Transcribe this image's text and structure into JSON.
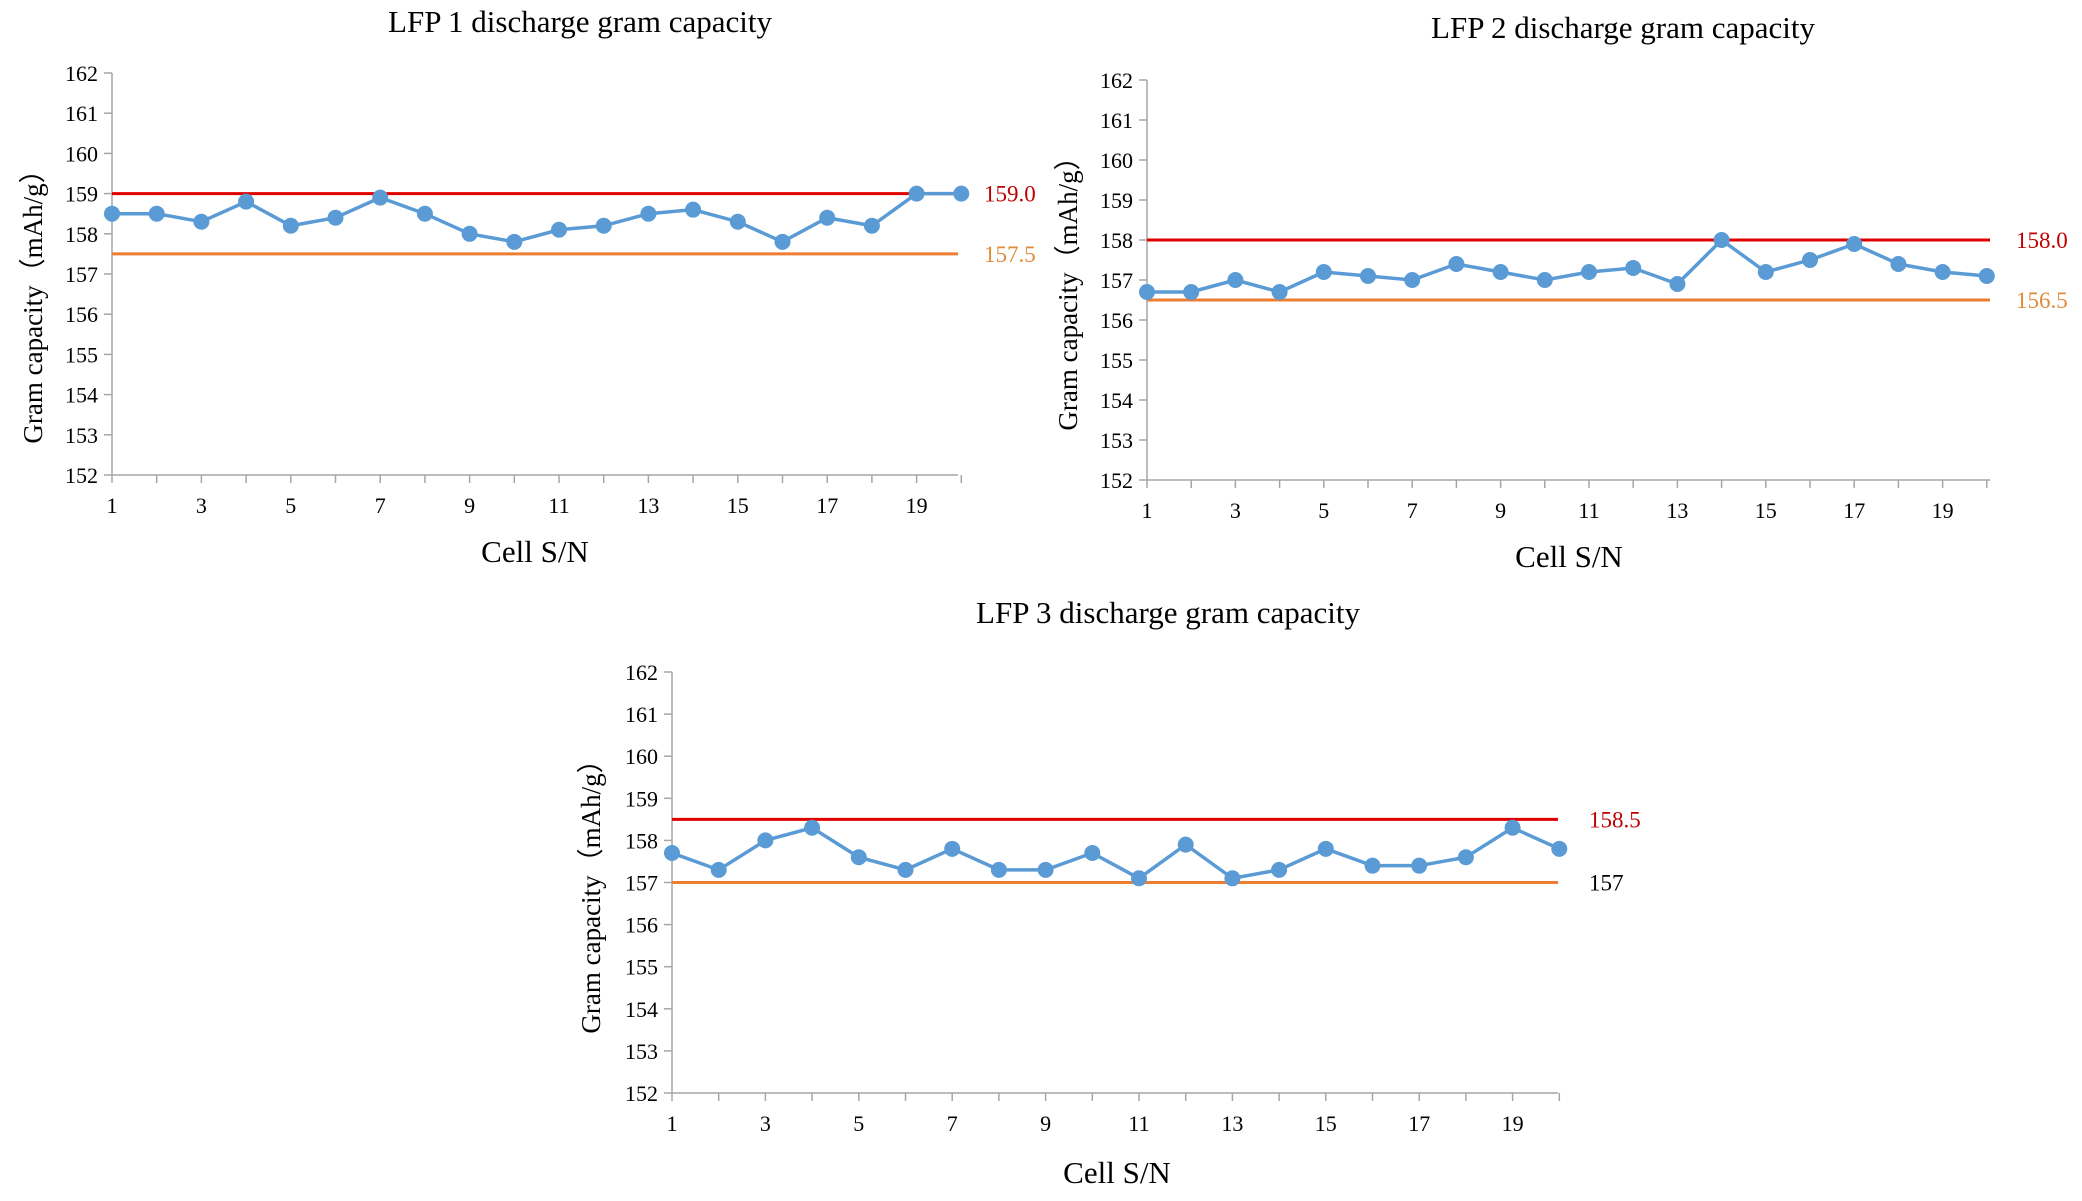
{
  "chart_data": [
    {
      "type": "line",
      "title": "LFP 1 discharge gram capacity",
      "xlabel": "Cell S/N",
      "ylabel": "Gram capacity（mAh/g）",
      "ylim": [
        152,
        162
      ],
      "yticks": [
        152,
        153,
        154,
        155,
        156,
        157,
        158,
        159,
        160,
        161,
        162
      ],
      "xticks": [
        1,
        3,
        5,
        7,
        9,
        11,
        13,
        15,
        17,
        19
      ],
      "x": [
        1,
        2,
        3,
        4,
        5,
        6,
        7,
        8,
        9,
        10,
        11,
        12,
        13,
        14,
        15,
        16,
        17,
        18,
        19,
        20
      ],
      "series": [
        {
          "name": "Gram capacity",
          "color": "#5b9bd5",
          "values": [
            158.5,
            158.5,
            158.3,
            158.8,
            158.2,
            158.4,
            158.9,
            158.5,
            158.0,
            157.8,
            158.1,
            158.2,
            158.5,
            158.6,
            158.3,
            157.8,
            158.4,
            158.2,
            159.0,
            159.0
          ]
        }
      ],
      "reference_lines": [
        {
          "value": 159.0,
          "label": "159.0",
          "color": "#e00000",
          "label_color": "#c00000"
        },
        {
          "value": 157.5,
          "label": "157.5",
          "color": "#ed7d31",
          "label_color": "#e08a3a"
        }
      ]
    },
    {
      "type": "line",
      "title": "LFP 2 discharge gram capacity",
      "xlabel": "Cell S/N",
      "ylabel": "Gram capacity（mAh/g）",
      "ylim": [
        152,
        162
      ],
      "yticks": [
        152,
        153,
        154,
        155,
        156,
        157,
        158,
        159,
        160,
        161,
        162
      ],
      "xticks": [
        1,
        3,
        5,
        7,
        9,
        11,
        13,
        15,
        17,
        19
      ],
      "x": [
        1,
        2,
        3,
        4,
        5,
        6,
        7,
        8,
        9,
        10,
        11,
        12,
        13,
        14,
        15,
        16,
        17,
        18,
        19,
        20
      ],
      "series": [
        {
          "name": "Gram capacity",
          "color": "#5b9bd5",
          "values": [
            156.7,
            156.7,
            157.0,
            156.7,
            157.2,
            157.1,
            157.0,
            157.4,
            157.2,
            157.0,
            157.2,
            157.3,
            156.9,
            158.0,
            157.2,
            157.5,
            157.9,
            157.4,
            157.2,
            157.1
          ]
        }
      ],
      "reference_lines": [
        {
          "value": 158.0,
          "label": "158.0",
          "color": "#e00000",
          "label_color": "#c00000"
        },
        {
          "value": 156.5,
          "label": "156.5",
          "color": "#ed7d31",
          "label_color": "#e08a3a"
        }
      ]
    },
    {
      "type": "line",
      "title": "LFP 3 discharge gram capacity",
      "xlabel": "Cell S/N",
      "ylabel": "Gram capacity（mAh/g）",
      "ylim": [
        152,
        162
      ],
      "yticks": [
        152,
        153,
        154,
        155,
        156,
        157,
        158,
        159,
        160,
        161,
        162
      ],
      "xticks": [
        1,
        3,
        5,
        7,
        9,
        11,
        13,
        15,
        17,
        19
      ],
      "x": [
        1,
        2,
        3,
        4,
        5,
        6,
        7,
        8,
        9,
        10,
        11,
        12,
        13,
        14,
        15,
        16,
        17,
        18,
        19,
        20
      ],
      "series": [
        {
          "name": "Gram capacity",
          "color": "#5b9bd5",
          "values": [
            157.7,
            157.3,
            158.0,
            158.3,
            157.6,
            157.3,
            157.8,
            157.3,
            157.3,
            157.7,
            157.1,
            157.9,
            157.1,
            157.3,
            157.8,
            157.4,
            157.4,
            157.6,
            158.3,
            157.8
          ]
        }
      ],
      "reference_lines": [
        {
          "value": 158.5,
          "label": "158.5",
          "color": "#e00000",
          "label_color": "#c00000"
        },
        {
          "value": 157.0,
          "label": "157",
          "color": "#ed7d31",
          "label_color": "#000000"
        }
      ]
    }
  ]
}
